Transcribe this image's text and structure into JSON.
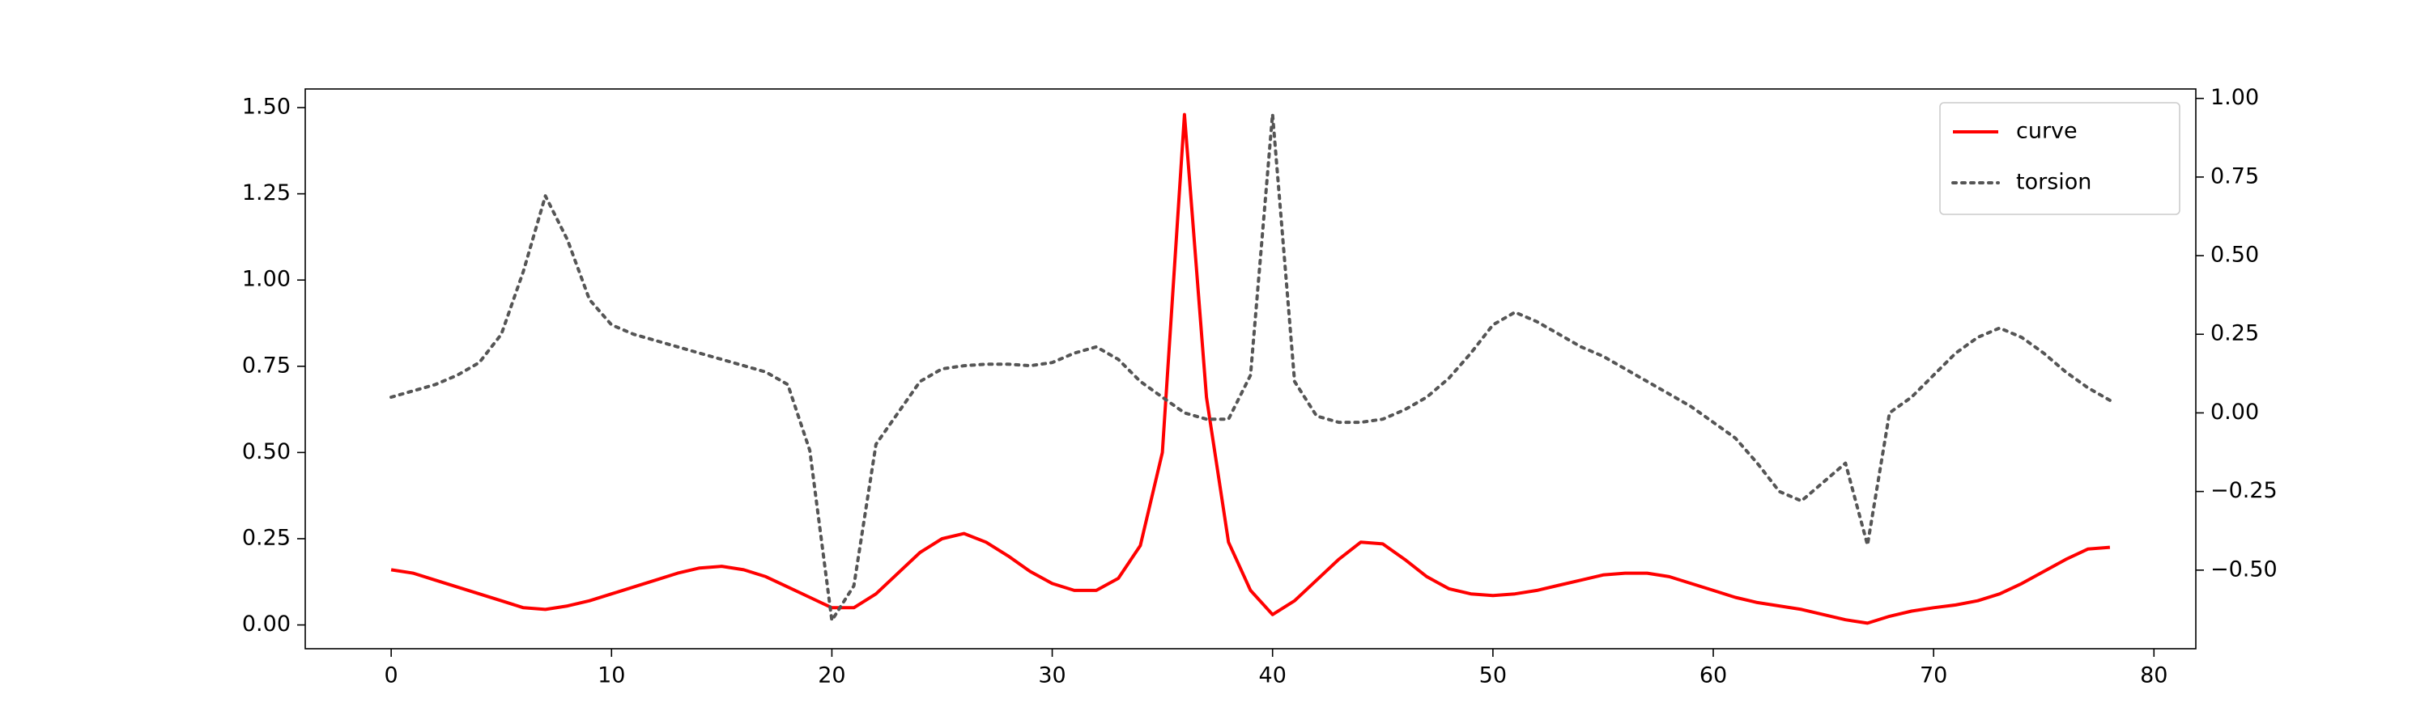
{
  "chart_data": {
    "type": "line",
    "x": [
      0,
      1,
      2,
      3,
      4,
      5,
      6,
      7,
      8,
      9,
      10,
      11,
      12,
      13,
      14,
      15,
      16,
      17,
      18,
      19,
      20,
      21,
      22,
      23,
      24,
      25,
      26,
      27,
      28,
      29,
      30,
      31,
      32,
      33,
      34,
      35,
      36,
      37,
      38,
      39,
      40,
      41,
      42,
      43,
      44,
      45,
      46,
      47,
      48,
      49,
      50,
      51,
      52,
      53,
      54,
      55,
      56,
      57,
      58,
      59,
      60,
      61,
      62,
      63,
      64,
      65,
      66,
      67,
      68,
      69,
      70,
      71,
      72,
      73,
      74,
      75,
      76,
      77,
      78
    ],
    "series": [
      {
        "name": "curve",
        "color": "#ff0000",
        "linestyle": "solid",
        "axis": "y",
        "values": [
          0.16,
          0.15,
          0.13,
          0.11,
          0.09,
          0.07,
          0.05,
          0.045,
          0.055,
          0.07,
          0.09,
          0.11,
          0.13,
          0.15,
          0.165,
          0.17,
          0.16,
          0.14,
          0.11,
          0.08,
          0.05,
          0.05,
          0.09,
          0.15,
          0.21,
          0.25,
          0.265,
          0.24,
          0.2,
          0.155,
          0.12,
          0.1,
          0.1,
          0.135,
          0.23,
          0.5,
          1.48,
          0.66,
          0.24,
          0.1,
          0.03,
          0.07,
          0.13,
          0.19,
          0.24,
          0.235,
          0.19,
          0.14,
          0.105,
          0.09,
          0.085,
          0.09,
          0.1,
          0.115,
          0.13,
          0.145,
          0.15,
          0.15,
          0.14,
          0.12,
          0.1,
          0.08,
          0.065,
          0.055,
          0.045,
          0.03,
          0.015,
          0.005,
          0.025,
          0.04,
          0.05,
          0.058,
          0.07,
          0.09,
          0.12,
          0.155,
          0.19,
          0.22,
          0.225
        ]
      },
      {
        "name": "torsion",
        "color": "#555555",
        "linestyle": "dotted",
        "axis": "y2",
        "values": [
          0.05,
          0.07,
          0.09,
          0.12,
          0.16,
          0.25,
          0.45,
          0.69,
          0.55,
          0.36,
          0.28,
          0.25,
          0.23,
          0.21,
          0.19,
          0.17,
          0.15,
          0.13,
          0.09,
          -0.12,
          -0.66,
          -0.55,
          -0.1,
          0.0,
          0.1,
          0.14,
          0.15,
          0.155,
          0.155,
          0.15,
          0.16,
          0.19,
          0.21,
          0.17,
          0.1,
          0.05,
          0.0,
          -0.02,
          -0.02,
          0.12,
          0.95,
          0.1,
          -0.01,
          -0.03,
          -0.03,
          -0.02,
          0.01,
          0.05,
          0.11,
          0.19,
          0.28,
          0.32,
          0.29,
          0.25,
          0.21,
          0.18,
          0.14,
          0.1,
          0.06,
          0.02,
          -0.03,
          -0.08,
          -0.16,
          -0.25,
          -0.28,
          -0.22,
          -0.16,
          -0.42,
          0.0,
          0.05,
          0.12,
          0.19,
          0.24,
          0.27,
          0.24,
          0.19,
          0.13,
          0.08,
          0.04
        ]
      }
    ],
    "xlim": [
      -3.9,
      81.9
    ],
    "xticks": [
      0,
      10,
      20,
      30,
      40,
      50,
      60,
      70,
      80
    ],
    "ylim": [
      -0.069,
      1.554
    ],
    "yticks": [
      {
        "value": 0,
        "label": "0.00"
      },
      {
        "value": 0.25,
        "label": "0.25"
      },
      {
        "value": 0.5,
        "label": "0.50"
      },
      {
        "value": 0.75,
        "label": "0.75"
      },
      {
        "value": 1,
        "label": "1.00"
      },
      {
        "value": 1.25,
        "label": "1.25"
      },
      {
        "value": 1.5,
        "label": "1.50"
      }
    ],
    "y2lim": [
      -0.75,
      1.03
    ],
    "y2ticks": [
      {
        "value": -0.5,
        "label": "−0.50"
      },
      {
        "value": -0.25,
        "label": "−0.25"
      },
      {
        "value": 0,
        "label": "0.00"
      },
      {
        "value": 0.25,
        "label": "0.25"
      },
      {
        "value": 0.5,
        "label": "0.50"
      },
      {
        "value": 0.75,
        "label": "0.75"
      },
      {
        "value": 1,
        "label": "1.00"
      }
    ],
    "grid": false,
    "legend": "upper right"
  }
}
